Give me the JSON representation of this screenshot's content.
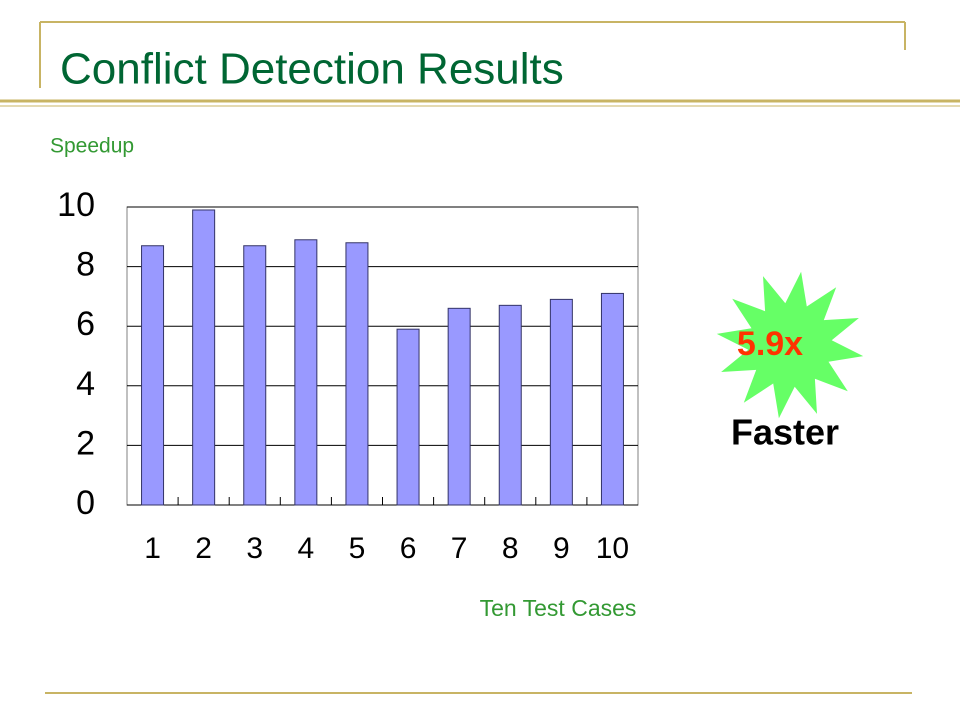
{
  "chart_data": {
    "type": "bar",
    "title": "Conflict Detection Results",
    "y_label": "Speedup",
    "x_label": "Ten Test Cases",
    "categories": [
      "1",
      "2",
      "3",
      "4",
      "5",
      "6",
      "7",
      "8",
      "9",
      "10"
    ],
    "values": [
      8.7,
      9.9,
      8.7,
      8.9,
      8.8,
      5.9,
      6.6,
      6.7,
      6.9,
      7.1
    ],
    "color": "#9999ff",
    "ylim": [
      0,
      10
    ],
    "yticks": [
      0,
      2,
      4,
      6,
      8,
      10
    ],
    "grid": true,
    "annotations": [
      "5.9x",
      "Faster"
    ]
  }
}
